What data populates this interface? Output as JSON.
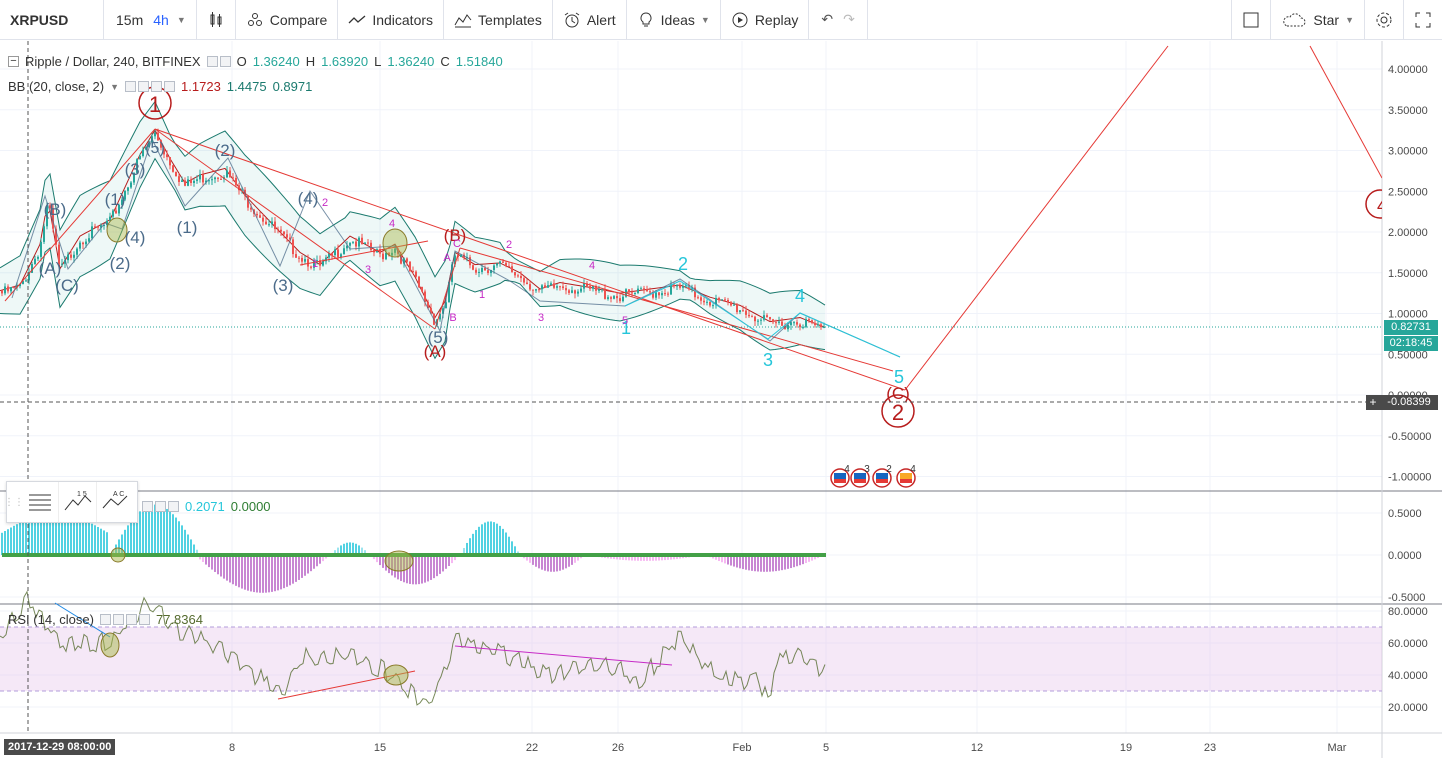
{
  "toolbar": {
    "symbol": "XRPUSD",
    "intervals": [
      "15m",
      "4h"
    ],
    "compare": "Compare",
    "indicators": "Indicators",
    "templates": "Templates",
    "alert": "Alert",
    "ideas": "Ideas",
    "replay": "Replay",
    "star": "Star"
  },
  "legend": {
    "title": "Ripple / Dollar, 240, BITFINEX",
    "open_key": "O",
    "open": "1.36240",
    "high_key": "H",
    "high": "1.63920",
    "low_key": "L",
    "low": "1.36240",
    "close_key": "C",
    "close": "1.51840",
    "bb_label": "BB (20, close, 2)",
    "bb_values": [
      "1.1723",
      "1.4475",
      "0.8971"
    ],
    "macd_values": [
      "0.2071",
      "0.0000"
    ],
    "rsi_label": "RSI (14, close)",
    "rsi_value": "77.8364"
  },
  "price_axis": {
    "labels": [
      "4.00000",
      "3.50000",
      "3.00000",
      "2.50000",
      "2.00000",
      "1.50000",
      "1.00000",
      "0.50000",
      "0.00000",
      "-0.50000",
      "-1.00000"
    ],
    "current_price": "0.82731",
    "countdown": "02:18:45",
    "crosshair_price": "-0.08399",
    "current_color": "#26a69a",
    "countdown_color": "#26a69a"
  },
  "macd_axis": {
    "labels": [
      "0.5000",
      "0.0000",
      "-0.5000"
    ]
  },
  "rsi_axis": {
    "labels": [
      "80.0000",
      "60.0000",
      "40.0000",
      "20.0000"
    ]
  },
  "time_axis": {
    "labels": [
      "8",
      "15",
      "22",
      "26",
      "Feb",
      "5",
      "12",
      "19",
      "23",
      "Mar"
    ],
    "crosshair_date": "2017-12-29 08:00:00"
  },
  "waves": {
    "main": [
      "1",
      "2",
      "4"
    ],
    "abc_red": [
      "(B)",
      "(A)",
      "(C)"
    ],
    "blue_primary": [
      "(3)",
      "(1)",
      "(2)",
      "(3)",
      "(4)",
      "(5)",
      "(1)",
      "(2)",
      "(A)",
      "(B)",
      "(C)",
      "(4)"
    ],
    "teal": [
      "1",
      "2",
      "3",
      "4",
      "5"
    ],
    "magenta": [
      "A",
      "B",
      "C",
      "1",
      "2",
      "3",
      "4",
      "5",
      "1",
      "2",
      "3",
      "4"
    ]
  },
  "events": [
    "4",
    "3",
    "2",
    "4"
  ],
  "colors": {
    "red": "#e53935",
    "wave_blue": "#4b6b8a",
    "teal": "#26c6da",
    "magenta": "#c62bc6",
    "bb_fill": "#26a69a"
  }
}
